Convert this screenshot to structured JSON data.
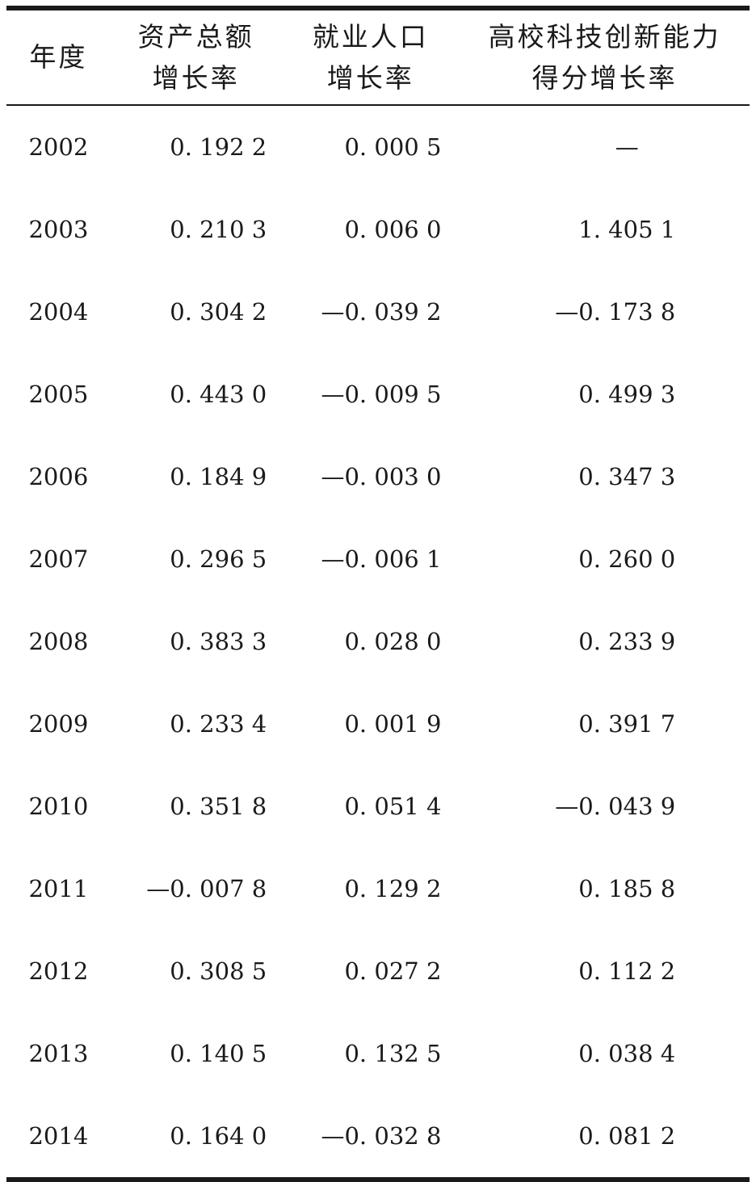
{
  "colors": {
    "ink": "#1a1a1a",
    "background": "#ffffff"
  },
  "table": {
    "header": {
      "year": {
        "line1": "年度",
        "line2": ""
      },
      "asset": {
        "line1": "资产总额",
        "line2": "增长率"
      },
      "employment": {
        "line1": "就业人口",
        "line2": "增长率"
      },
      "score": {
        "line1": "高校科技创新能力",
        "line2": "得分增长率"
      }
    },
    "rows": [
      {
        "year": "2002",
        "asset": {
          "sign": "",
          "mag": "0. 192 2"
        },
        "employment": {
          "sign": "",
          "mag": "0. 000 5"
        },
        "score": {
          "sign": "",
          "mag": "—"
        }
      },
      {
        "year": "2003",
        "asset": {
          "sign": "",
          "mag": "0. 210 3"
        },
        "employment": {
          "sign": "",
          "mag": "0. 006 0"
        },
        "score": {
          "sign": "",
          "mag": "1. 405 1"
        }
      },
      {
        "year": "2004",
        "asset": {
          "sign": "",
          "mag": "0. 304 2"
        },
        "employment": {
          "sign": "—",
          "mag": "0. 039 2"
        },
        "score": {
          "sign": "—",
          "mag": "0. 173 8"
        }
      },
      {
        "year": "2005",
        "asset": {
          "sign": "",
          "mag": "0. 443 0"
        },
        "employment": {
          "sign": "—",
          "mag": "0. 009 5"
        },
        "score": {
          "sign": "",
          "mag": "0. 499 3"
        }
      },
      {
        "year": "2006",
        "asset": {
          "sign": "",
          "mag": "0. 184 9"
        },
        "employment": {
          "sign": "—",
          "mag": "0. 003 0"
        },
        "score": {
          "sign": "",
          "mag": "0. 347 3"
        }
      },
      {
        "year": "2007",
        "asset": {
          "sign": "",
          "mag": "0. 296 5"
        },
        "employment": {
          "sign": "—",
          "mag": "0. 006 1"
        },
        "score": {
          "sign": "",
          "mag": "0. 260 0"
        }
      },
      {
        "year": "2008",
        "asset": {
          "sign": "",
          "mag": "0. 383 3"
        },
        "employment": {
          "sign": "",
          "mag": "0. 028 0"
        },
        "score": {
          "sign": "",
          "mag": "0. 233 9"
        }
      },
      {
        "year": "2009",
        "asset": {
          "sign": "",
          "mag": "0. 233 4"
        },
        "employment": {
          "sign": "",
          "mag": "0. 001 9"
        },
        "score": {
          "sign": "",
          "mag": "0. 391 7"
        }
      },
      {
        "year": "2010",
        "asset": {
          "sign": "",
          "mag": "0. 351 8"
        },
        "employment": {
          "sign": "",
          "mag": "0. 051 4"
        },
        "score": {
          "sign": "—",
          "mag": "0. 043 9"
        }
      },
      {
        "year": "2011",
        "asset": {
          "sign": "—",
          "mag": "0. 007 8"
        },
        "employment": {
          "sign": "",
          "mag": "0. 129 2"
        },
        "score": {
          "sign": "",
          "mag": "0. 185 8"
        }
      },
      {
        "year": "2012",
        "asset": {
          "sign": "",
          "mag": "0. 308 5"
        },
        "employment": {
          "sign": "",
          "mag": "0. 027 2"
        },
        "score": {
          "sign": "",
          "mag": "0. 112 2"
        }
      },
      {
        "year": "2013",
        "asset": {
          "sign": "",
          "mag": "0. 140 5"
        },
        "employment": {
          "sign": "",
          "mag": "0. 132 5"
        },
        "score": {
          "sign": "",
          "mag": "0. 038 4"
        }
      },
      {
        "year": "2014",
        "asset": {
          "sign": "",
          "mag": "0. 164 0"
        },
        "employment": {
          "sign": "—",
          "mag": "0. 032 8"
        },
        "score": {
          "sign": "",
          "mag": "0. 081 2"
        }
      }
    ]
  }
}
